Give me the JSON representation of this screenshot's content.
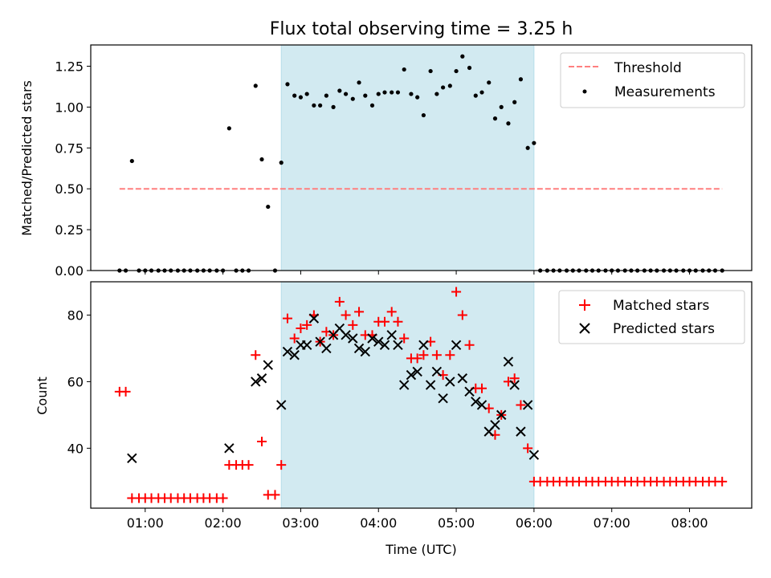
{
  "chart_data": [
    {
      "type": "scatter",
      "panel": "top",
      "title": "Flux total observing time = 3.25 h",
      "xlabel": "",
      "ylabel": "Matched/Predicted stars",
      "xlim": [
        0.3,
        8.8
      ],
      "ylim": [
        0,
        1.38
      ],
      "yticks": [
        0,
        0.25,
        0.5,
        0.75,
        1.0,
        1.25
      ],
      "ytick_labels": [
        "0.00",
        "0.25",
        "0.50",
        "0.75",
        "1.00",
        "1.25"
      ],
      "grid": false,
      "legend": "upper right",
      "highlight_span": {
        "x0": 2.75,
        "x1": 6.0,
        "color": "#add8e6"
      },
      "threshold": {
        "name": "Threshold",
        "value": 0.5,
        "x_from": 0.67,
        "x_to": 8.42,
        "color": "#ff7f7f",
        "style": "dashed"
      },
      "series": [
        {
          "name": "Measurements",
          "color": "#000000",
          "marker": "dot",
          "points": [
            [
              0.67,
              0
            ],
            [
              0.75,
              0
            ],
            [
              0.83,
              0.67
            ],
            [
              0.92,
              0
            ],
            [
              1.0,
              0
            ],
            [
              1.08,
              0
            ],
            [
              1.17,
              0
            ],
            [
              1.25,
              0
            ],
            [
              1.33,
              0
            ],
            [
              1.42,
              0
            ],
            [
              1.5,
              0
            ],
            [
              1.58,
              0
            ],
            [
              1.67,
              0
            ],
            [
              1.75,
              0
            ],
            [
              1.83,
              0
            ],
            [
              1.92,
              0
            ],
            [
              2.0,
              0
            ],
            [
              2.08,
              0.87
            ],
            [
              2.17,
              0
            ],
            [
              2.25,
              0
            ],
            [
              2.33,
              0
            ],
            [
              2.42,
              1.13
            ],
            [
              2.5,
              0.68
            ],
            [
              2.58,
              0.39
            ],
            [
              2.67,
              0
            ],
            [
              2.75,
              0.66
            ],
            [
              2.83,
              1.14
            ],
            [
              2.92,
              1.07
            ],
            [
              3.0,
              1.06
            ],
            [
              3.08,
              1.08
            ],
            [
              3.17,
              1.01
            ],
            [
              3.25,
              1.01
            ],
            [
              3.33,
              1.07
            ],
            [
              3.42,
              1.0
            ],
            [
              3.5,
              1.1
            ],
            [
              3.58,
              1.08
            ],
            [
              3.67,
              1.05
            ],
            [
              3.75,
              1.15
            ],
            [
              3.83,
              1.07
            ],
            [
              3.92,
              1.01
            ],
            [
              4.0,
              1.08
            ],
            [
              4.08,
              1.09
            ],
            [
              4.17,
              1.09
            ],
            [
              4.25,
              1.09
            ],
            [
              4.33,
              1.23
            ],
            [
              4.42,
              1.08
            ],
            [
              4.5,
              1.06
            ],
            [
              4.58,
              0.95
            ],
            [
              4.67,
              1.22
            ],
            [
              4.75,
              1.08
            ],
            [
              4.83,
              1.12
            ],
            [
              4.92,
              1.13
            ],
            [
              5.0,
              1.22
            ],
            [
              5.08,
              1.31
            ],
            [
              5.17,
              1.24
            ],
            [
              5.25,
              1.07
            ],
            [
              5.33,
              1.09
            ],
            [
              5.42,
              1.15
            ],
            [
              5.5,
              0.93
            ],
            [
              5.58,
              1.0
            ],
            [
              5.67,
              0.9
            ],
            [
              5.75,
              1.03
            ],
            [
              5.83,
              1.17
            ],
            [
              5.92,
              0.75
            ],
            [
              6.0,
              0.78
            ],
            [
              6.08,
              0
            ],
            [
              6.17,
              0
            ],
            [
              6.25,
              0
            ],
            [
              6.33,
              0
            ],
            [
              6.42,
              0
            ],
            [
              6.5,
              0
            ],
            [
              6.58,
              0
            ],
            [
              6.67,
              0
            ],
            [
              6.75,
              0
            ],
            [
              6.83,
              0
            ],
            [
              6.92,
              0
            ],
            [
              7.0,
              0
            ],
            [
              7.08,
              0
            ],
            [
              7.17,
              0
            ],
            [
              7.25,
              0
            ],
            [
              7.33,
              0
            ],
            [
              7.42,
              0
            ],
            [
              7.5,
              0
            ],
            [
              7.58,
              0
            ],
            [
              7.67,
              0
            ],
            [
              7.75,
              0
            ],
            [
              7.83,
              0
            ],
            [
              7.92,
              0
            ],
            [
              8.0,
              0
            ],
            [
              8.08,
              0
            ],
            [
              8.17,
              0
            ],
            [
              8.25,
              0
            ],
            [
              8.33,
              0
            ],
            [
              8.42,
              0
            ]
          ]
        }
      ]
    },
    {
      "type": "scatter",
      "panel": "bottom",
      "title": "",
      "xlabel": "Time (UTC)",
      "ylabel": "Count",
      "xlim": [
        0.3,
        8.8
      ],
      "ylim": [
        22,
        90
      ],
      "yticks": [
        40,
        60,
        80
      ],
      "ytick_labels": [
        "40",
        "60",
        "80"
      ],
      "xticks": [
        1,
        2,
        3,
        4,
        5,
        6,
        7,
        8
      ],
      "xtick_labels": [
        "01:00",
        "02:00",
        "03:00",
        "04:00",
        "05:00",
        "06:00",
        "07:00",
        "08:00"
      ],
      "grid": false,
      "legend": "upper right",
      "highlight_span": {
        "x0": 2.75,
        "x1": 6.0,
        "color": "#add8e6"
      },
      "series": [
        {
          "name": "Matched stars",
          "color": "#ff0000",
          "marker": "plus",
          "points": [
            [
              0.67,
              57
            ],
            [
              0.75,
              57
            ],
            [
              0.83,
              25
            ],
            [
              0.92,
              25
            ],
            [
              1.0,
              25
            ],
            [
              1.08,
              25
            ],
            [
              1.17,
              25
            ],
            [
              1.25,
              25
            ],
            [
              1.33,
              25
            ],
            [
              1.42,
              25
            ],
            [
              1.5,
              25
            ],
            [
              1.58,
              25
            ],
            [
              1.67,
              25
            ],
            [
              1.75,
              25
            ],
            [
              1.83,
              25
            ],
            [
              1.92,
              25
            ],
            [
              2.0,
              25
            ],
            [
              2.08,
              35
            ],
            [
              2.17,
              35
            ],
            [
              2.25,
              35
            ],
            [
              2.33,
              35
            ],
            [
              2.42,
              68
            ],
            [
              2.5,
              42
            ],
            [
              2.58,
              26
            ],
            [
              2.67,
              26
            ],
            [
              2.75,
              35
            ],
            [
              2.83,
              79
            ],
            [
              2.92,
              73
            ],
            [
              3.0,
              76
            ],
            [
              3.08,
              77
            ],
            [
              3.17,
              80
            ],
            [
              3.25,
              72
            ],
            [
              3.33,
              75
            ],
            [
              3.42,
              74
            ],
            [
              3.5,
              84
            ],
            [
              3.58,
              80
            ],
            [
              3.67,
              77
            ],
            [
              3.75,
              81
            ],
            [
              3.83,
              74
            ],
            [
              3.92,
              74
            ],
            [
              4.0,
              78
            ],
            [
              4.08,
              78
            ],
            [
              4.17,
              81
            ],
            [
              4.25,
              78
            ],
            [
              4.33,
              73
            ],
            [
              4.42,
              67
            ],
            [
              4.5,
              67
            ],
            [
              4.58,
              68
            ],
            [
              4.67,
              72
            ],
            [
              4.75,
              68
            ],
            [
              4.83,
              62
            ],
            [
              4.92,
              68
            ],
            [
              5.0,
              87
            ],
            [
              5.08,
              80
            ],
            [
              5.17,
              71
            ],
            [
              5.25,
              58
            ],
            [
              5.33,
              58
            ],
            [
              5.42,
              52
            ],
            [
              5.5,
              44
            ],
            [
              5.58,
              50
            ],
            [
              5.67,
              60
            ],
            [
              5.75,
              61
            ],
            [
              5.83,
              53
            ],
            [
              5.92,
              40
            ],
            [
              6.0,
              30
            ],
            [
              6.08,
              30
            ],
            [
              6.17,
              30
            ],
            [
              6.25,
              30
            ],
            [
              6.33,
              30
            ],
            [
              6.42,
              30
            ],
            [
              6.5,
              30
            ],
            [
              6.58,
              30
            ],
            [
              6.67,
              30
            ],
            [
              6.75,
              30
            ],
            [
              6.83,
              30
            ],
            [
              6.92,
              30
            ],
            [
              7.0,
              30
            ],
            [
              7.08,
              30
            ],
            [
              7.17,
              30
            ],
            [
              7.25,
              30
            ],
            [
              7.33,
              30
            ],
            [
              7.42,
              30
            ],
            [
              7.5,
              30
            ],
            [
              7.58,
              30
            ],
            [
              7.67,
              30
            ],
            [
              7.75,
              30
            ],
            [
              7.83,
              30
            ],
            [
              7.92,
              30
            ],
            [
              8.0,
              30
            ],
            [
              8.08,
              30
            ],
            [
              8.17,
              30
            ],
            [
              8.25,
              30
            ],
            [
              8.33,
              30
            ],
            [
              8.42,
              30
            ]
          ]
        },
        {
          "name": "Predicted stars",
          "color": "#000000",
          "marker": "x",
          "points": [
            [
              0.83,
              37
            ],
            [
              2.08,
              40
            ],
            [
              2.42,
              60
            ],
            [
              2.5,
              61
            ],
            [
              2.58,
              65
            ],
            [
              2.75,
              53
            ],
            [
              2.83,
              69
            ],
            [
              2.92,
              68
            ],
            [
              3.0,
              71
            ],
            [
              3.08,
              71
            ],
            [
              3.17,
              79
            ],
            [
              3.25,
              72
            ],
            [
              3.33,
              70
            ],
            [
              3.42,
              74
            ],
            [
              3.5,
              76
            ],
            [
              3.58,
              74
            ],
            [
              3.67,
              73
            ],
            [
              3.75,
              70
            ],
            [
              3.83,
              69
            ],
            [
              3.92,
              73
            ],
            [
              4.0,
              72
            ],
            [
              4.08,
              71
            ],
            [
              4.17,
              74
            ],
            [
              4.25,
              71
            ],
            [
              4.33,
              59
            ],
            [
              4.42,
              62
            ],
            [
              4.5,
              63
            ],
            [
              4.58,
              71
            ],
            [
              4.67,
              59
            ],
            [
              4.75,
              63
            ],
            [
              4.83,
              55
            ],
            [
              4.92,
              60
            ],
            [
              5.0,
              71
            ],
            [
              5.08,
              61
            ],
            [
              5.17,
              57
            ],
            [
              5.25,
              54
            ],
            [
              5.33,
              53
            ],
            [
              5.42,
              45
            ],
            [
              5.5,
              47
            ],
            [
              5.58,
              50
            ],
            [
              5.67,
              66
            ],
            [
              5.75,
              59
            ],
            [
              5.83,
              45
            ],
            [
              5.92,
              53
            ],
            [
              6.0,
              38
            ]
          ]
        }
      ]
    }
  ]
}
